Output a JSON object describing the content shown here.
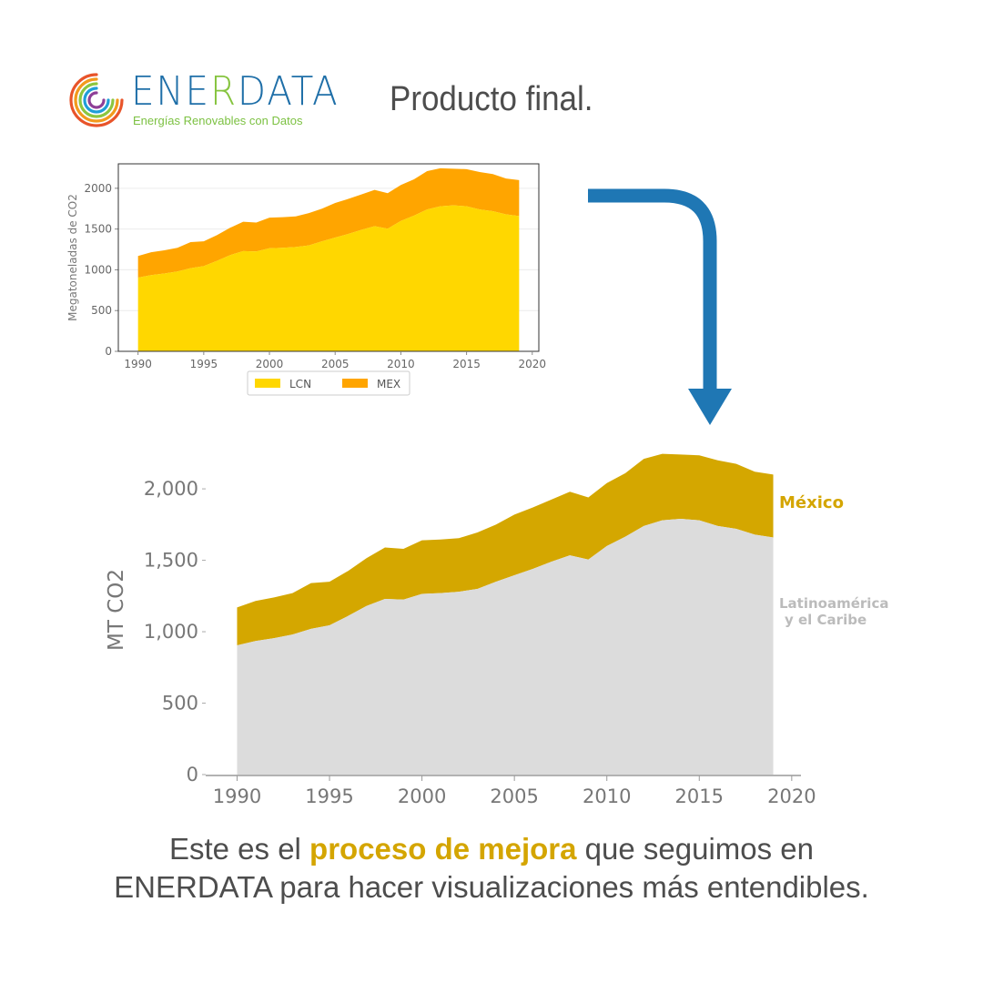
{
  "header": {
    "logo_word_a": "ENE",
    "logo_word_b": "R",
    "logo_word_c": "DATA",
    "logo_tagline": "Energías Renovables con Datos",
    "headline": "Producto final."
  },
  "caption": {
    "line1_a": "Este es el ",
    "line1_highlight": "proceso de mejora",
    "line1_b": " que seguimos en",
    "line2": "ENERDATA para hacer visualizaciones más entendibles."
  },
  "colors": {
    "small_lcn": "#ffd700",
    "small_mex": "#ffa500",
    "final_lcn": "#dcdcdc",
    "final_mex": "#d4a700",
    "arrow": "#1f77b4",
    "accent_text": "#d4a500"
  },
  "chart_data": [
    {
      "type": "area",
      "stacked": true,
      "ylabel": "Megatoneladas de CO2",
      "xlabel": "",
      "x": [
        1990,
        1991,
        1992,
        1993,
        1994,
        1995,
        1996,
        1997,
        1998,
        1999,
        2000,
        2001,
        2002,
        2003,
        2004,
        2005,
        2006,
        2007,
        2008,
        2009,
        2010,
        2011,
        2012,
        2013,
        2014,
        2015,
        2016,
        2017,
        2018,
        2019
      ],
      "xlim": [
        1988.5,
        2020.5
      ],
      "ylim": [
        0,
        2300
      ],
      "xticks": [
        "1990",
        "1995",
        "2000",
        "2005",
        "2010",
        "2015",
        "2020"
      ],
      "yticks": [
        "0",
        "500",
        "1000",
        "1500",
        "2000"
      ],
      "grid": true,
      "legend_position": "bottom-center",
      "series": [
        {
          "name": "LCN",
          "values": [
            905,
            935,
            955,
            980,
            1020,
            1045,
            1110,
            1180,
            1230,
            1225,
            1265,
            1270,
            1280,
            1300,
            1350,
            1395,
            1440,
            1490,
            1535,
            1505,
            1600,
            1665,
            1740,
            1780,
            1790,
            1780,
            1740,
            1720,
            1680,
            1660
          ]
        },
        {
          "name": "MEX",
          "values": [
            265,
            280,
            285,
            290,
            320,
            305,
            315,
            335,
            360,
            355,
            375,
            375,
            375,
            395,
            400,
            425,
            430,
            435,
            445,
            435,
            440,
            445,
            470,
            465,
            450,
            455,
            460,
            455,
            440,
            440
          ]
        }
      ]
    },
    {
      "type": "area",
      "stacked": true,
      "ylabel": "MT CO2",
      "xlabel": "",
      "x": [
        1990,
        1991,
        1992,
        1993,
        1994,
        1995,
        1996,
        1997,
        1998,
        1999,
        2000,
        2001,
        2002,
        2003,
        2004,
        2005,
        2006,
        2007,
        2008,
        2009,
        2010,
        2011,
        2012,
        2013,
        2014,
        2015,
        2016,
        2017,
        2018,
        2019
      ],
      "xlim": [
        1988.5,
        2020.5
      ],
      "ylim": [
        0,
        2300
      ],
      "xticks": [
        "1990",
        "1995",
        "2000",
        "2005",
        "2010",
        "2015",
        "2020"
      ],
      "yticks": [
        "0",
        "500",
        "1,000",
        "1,500",
        "2,000"
      ],
      "grid": false,
      "series": [
        {
          "name": "Latinoamérica y el Caribe",
          "label_line1": "Latinoamérica",
          "label_line2": "y el Caribe",
          "values": [
            905,
            935,
            955,
            980,
            1020,
            1045,
            1110,
            1180,
            1230,
            1225,
            1265,
            1270,
            1280,
            1300,
            1350,
            1395,
            1440,
            1490,
            1535,
            1505,
            1600,
            1665,
            1740,
            1780,
            1790,
            1780,
            1740,
            1720,
            1680,
            1660
          ]
        },
        {
          "name": "México",
          "values": [
            265,
            280,
            285,
            290,
            320,
            305,
            315,
            335,
            360,
            355,
            375,
            375,
            375,
            395,
            400,
            425,
            430,
            435,
            445,
            435,
            440,
            445,
            470,
            465,
            450,
            455,
            460,
            455,
            440,
            440
          ]
        }
      ]
    }
  ]
}
